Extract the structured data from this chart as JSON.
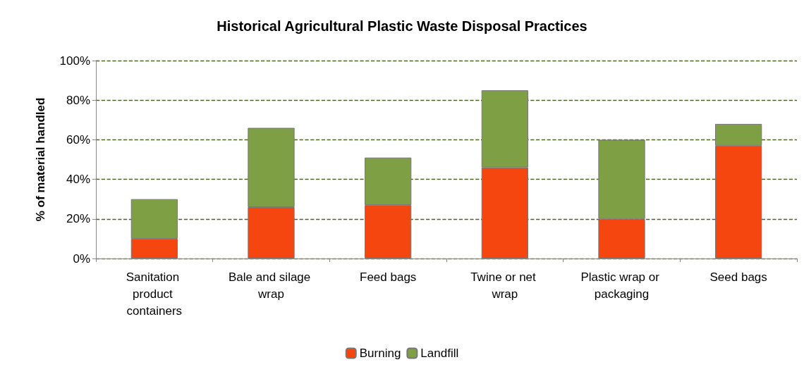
{
  "chart_data": {
    "type": "bar",
    "stacked": true,
    "title": "Historical Agricultural Plastic Waste Disposal Practices",
    "ylabel": "% of material handled",
    "categories": [
      "Sanitation product containers",
      "Bale and silage wrap",
      "Feed bags",
      "Twine or net wrap",
      "Plastic wrap or packaging",
      "Seed bags"
    ],
    "series": [
      {
        "name": "Burning",
        "color": "#f5460f",
        "values": [
          10,
          26,
          27,
          46,
          20,
          57
        ]
      },
      {
        "name": "Landfill",
        "color": "#7f9f45",
        "values": [
          20,
          40,
          24,
          39,
          40,
          11
        ]
      }
    ],
    "ylim": [
      0,
      100
    ],
    "yticks": [
      {
        "value": 0,
        "label": "0%"
      },
      {
        "value": 20,
        "label": "20%"
      },
      {
        "value": 40,
        "label": "40%"
      },
      {
        "value": 60,
        "label": "60%"
      },
      {
        "value": 80,
        "label": "80%"
      },
      {
        "value": 100,
        "label": "100%"
      }
    ],
    "grid": "y",
    "legend": "bottom"
  }
}
